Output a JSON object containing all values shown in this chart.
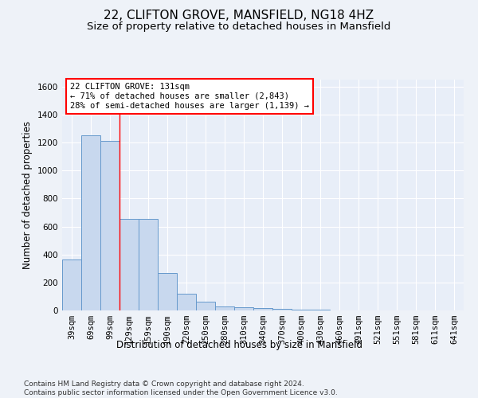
{
  "title": "22, CLIFTON GROVE, MANSFIELD, NG18 4HZ",
  "subtitle": "Size of property relative to detached houses in Mansfield",
  "xlabel": "Distribution of detached houses by size in Mansfield",
  "ylabel": "Number of detached properties",
  "footer": "Contains HM Land Registry data © Crown copyright and database right 2024.\nContains public sector information licensed under the Open Government Licence v3.0.",
  "bar_labels": [
    "39sqm",
    "69sqm",
    "99sqm",
    "129sqm",
    "159sqm",
    "190sqm",
    "220sqm",
    "250sqm",
    "280sqm",
    "310sqm",
    "340sqm",
    "370sqm",
    "400sqm",
    "430sqm",
    "460sqm",
    "491sqm",
    "521sqm",
    "551sqm",
    "581sqm",
    "611sqm",
    "641sqm"
  ],
  "bar_values": [
    365,
    1253,
    1210,
    655,
    655,
    265,
    120,
    65,
    30,
    20,
    15,
    10,
    8,
    5,
    0,
    0,
    0,
    0,
    0,
    0,
    0
  ],
  "bar_color": "#c8d8ee",
  "bar_edge_color": "#6699cc",
  "ylim": [
    0,
    1650
  ],
  "yticks": [
    0,
    200,
    400,
    600,
    800,
    1000,
    1200,
    1400,
    1600
  ],
  "property_label": "22 CLIFTON GROVE: 131sqm",
  "arrow_left_text": "← 71% of detached houses are smaller (2,843)",
  "arrow_right_text": "28% of semi-detached houses are larger (1,139) →",
  "vline_bar_index": 2,
  "background_color": "#eef2f8",
  "plot_bg_color": "#e8eef8",
  "grid_color": "#ffffff",
  "title_fontsize": 11,
  "subtitle_fontsize": 9.5,
  "label_fontsize": 8.5,
  "tick_fontsize": 7.5,
  "footer_fontsize": 6.5,
  "annotation_fontsize": 7.5
}
